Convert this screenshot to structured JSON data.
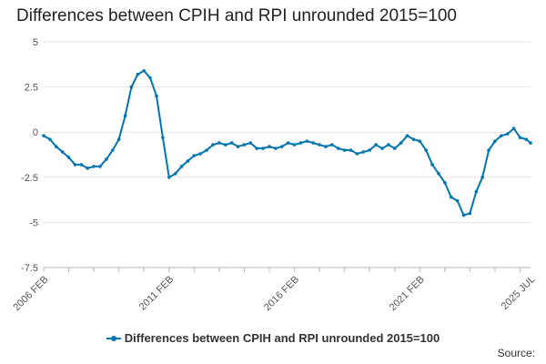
{
  "chart_data": {
    "type": "line",
    "title": "Differences between CPIH and RPI unrounded 2015=100",
    "xlabel": "",
    "ylabel": "",
    "ylim": [
      -7.5,
      5
    ],
    "y_ticks": [
      "5",
      "2.5",
      "0",
      "-2.5",
      "-5",
      "-7.5"
    ],
    "xlim": [
      "2006-02",
      "2025-07"
    ],
    "x_tick_labels": [
      "2006 FEB",
      "2011 FEB",
      "2016 FEB",
      "2021 FEB",
      "2025 JUL"
    ],
    "grid": true,
    "legend_position": "bottom",
    "series": [
      {
        "name": "Differences between CPIH and RPI unrounded 2015=100",
        "color": "#0075b0",
        "points": [
          [
            "2006-02",
            -0.2
          ],
          [
            "2006-05",
            -0.4
          ],
          [
            "2006-08",
            -0.8
          ],
          [
            "2006-11",
            -1.1
          ],
          [
            "2007-02",
            -1.4
          ],
          [
            "2007-05",
            -1.8
          ],
          [
            "2007-08",
            -1.8
          ],
          [
            "2007-11",
            -2.0
          ],
          [
            "2008-02",
            -1.9
          ],
          [
            "2008-05",
            -1.9
          ],
          [
            "2008-08",
            -1.5
          ],
          [
            "2008-11",
            -1.0
          ],
          [
            "2009-02",
            -0.4
          ],
          [
            "2009-05",
            0.9
          ],
          [
            "2009-08",
            2.5
          ],
          [
            "2009-11",
            3.2
          ],
          [
            "2010-02",
            3.4
          ],
          [
            "2010-05",
            3.0
          ],
          [
            "2010-08",
            2.0
          ],
          [
            "2010-11",
            -0.3
          ],
          [
            "2011-02",
            -2.5
          ],
          [
            "2011-05",
            -2.3
          ],
          [
            "2011-08",
            -1.9
          ],
          [
            "2011-11",
            -1.6
          ],
          [
            "2012-02",
            -1.3
          ],
          [
            "2012-05",
            -1.2
          ],
          [
            "2012-08",
            -1.0
          ],
          [
            "2012-11",
            -0.7
          ],
          [
            "2013-02",
            -0.6
          ],
          [
            "2013-05",
            -0.7
          ],
          [
            "2013-08",
            -0.6
          ],
          [
            "2013-11",
            -0.8
          ],
          [
            "2014-02",
            -0.7
          ],
          [
            "2014-05",
            -0.6
          ],
          [
            "2014-08",
            -0.9
          ],
          [
            "2014-11",
            -0.9
          ],
          [
            "2015-02",
            -0.8
          ],
          [
            "2015-05",
            -0.9
          ],
          [
            "2015-08",
            -0.8
          ],
          [
            "2015-11",
            -0.6
          ],
          [
            "2016-02",
            -0.7
          ],
          [
            "2016-05",
            -0.6
          ],
          [
            "2016-08",
            -0.5
          ],
          [
            "2016-11",
            -0.6
          ],
          [
            "2017-02",
            -0.7
          ],
          [
            "2017-05",
            -0.8
          ],
          [
            "2017-08",
            -0.7
          ],
          [
            "2017-11",
            -0.9
          ],
          [
            "2018-02",
            -1.0
          ],
          [
            "2018-05",
            -1.0
          ],
          [
            "2018-08",
            -1.2
          ],
          [
            "2018-11",
            -1.1
          ],
          [
            "2019-02",
            -1.0
          ],
          [
            "2019-05",
            -0.7
          ],
          [
            "2019-08",
            -0.9
          ],
          [
            "2019-11",
            -0.7
          ],
          [
            "2020-02",
            -0.9
          ],
          [
            "2020-05",
            -0.6
          ],
          [
            "2020-08",
            -0.2
          ],
          [
            "2020-11",
            -0.4
          ],
          [
            "2021-02",
            -0.5
          ],
          [
            "2021-05",
            -1.0
          ],
          [
            "2021-08",
            -1.8
          ],
          [
            "2021-11",
            -2.3
          ],
          [
            "2022-02",
            -2.8
          ],
          [
            "2022-05",
            -3.6
          ],
          [
            "2022-08",
            -3.8
          ],
          [
            "2022-11",
            -4.6
          ],
          [
            "2023-02",
            -4.5
          ],
          [
            "2023-05",
            -3.3
          ],
          [
            "2023-08",
            -2.5
          ],
          [
            "2023-11",
            -1.0
          ],
          [
            "2024-02",
            -0.5
          ],
          [
            "2024-05",
            -0.2
          ],
          [
            "2024-08",
            -0.1
          ],
          [
            "2024-11",
            0.2
          ],
          [
            "2025-02",
            -0.3
          ],
          [
            "2025-05",
            -0.4
          ],
          [
            "2025-07",
            -0.6
          ]
        ]
      }
    ]
  },
  "legend": {
    "label": "Differences between CPIH and RPI unrounded 2015=100"
  },
  "source": {
    "label": "Source:"
  }
}
